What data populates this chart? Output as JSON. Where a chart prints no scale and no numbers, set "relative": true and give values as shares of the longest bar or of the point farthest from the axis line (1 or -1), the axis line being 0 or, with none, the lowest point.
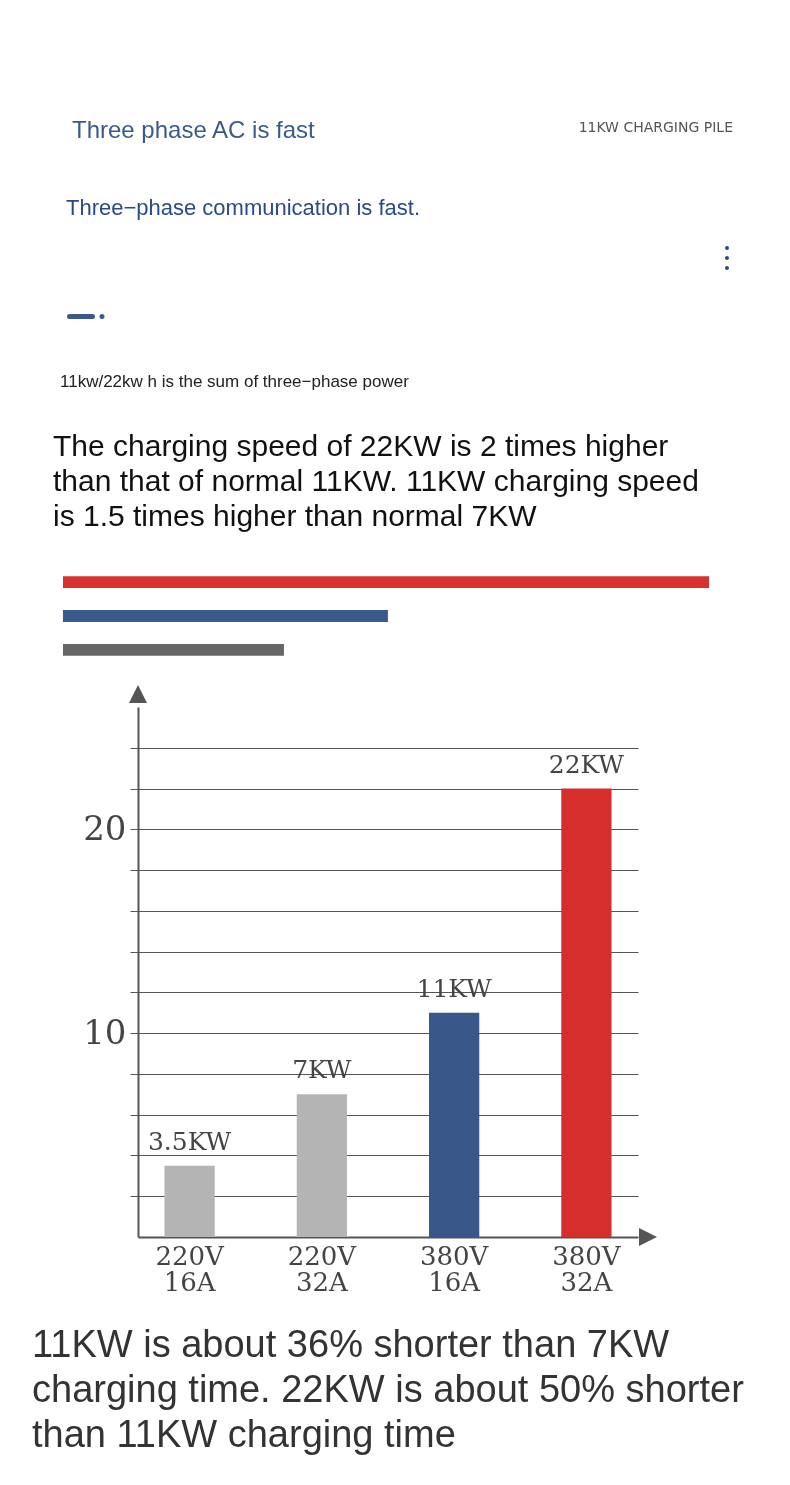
{
  "chart_data": [
    {
      "type": "bar",
      "title": "Three phase AC is fast",
      "subtitle": "Three−phase communication is fast.",
      "annotations": [
        "11KW CHARGING PILE",
        "11kw/22kw h is the sum of three−phase power",
        "The charging speed of 22KW is 2 times higher than that of normal 11KW. 11KW charging speed is 1.5 times higher than normal 7KW"
      ],
      "orientation": "horizontal",
      "relative": true,
      "categories": [
        null,
        null,
        null
      ],
      "values": [
        1,
        0.503,
        0.342
      ],
      "colors": [
        "#d7302f",
        "#3a5a8c",
        "#666666"
      ]
    },
    {
      "type": "bar",
      "categories": [
        "220V\n16A",
        "220V\n32A",
        "380V\n16A",
        "380V\n32A"
      ],
      "values": [
        3.5,
        7,
        11,
        22
      ],
      "colors": [
        "#b4b4b4",
        "#b4b4b4",
        "#3a5789",
        "#d62d2d"
      ],
      "value_labels": [
        "3.5KW",
        "7KW",
        "11KW",
        "22KW"
      ],
      "ylim": [
        0,
        26
      ],
      "yticks": [
        {
          "value": 2,
          "label": null
        },
        {
          "value": 4,
          "label": null
        },
        {
          "value": 6,
          "label": null
        },
        {
          "value": 8,
          "label": null
        },
        10,
        {
          "value": 12,
          "label": null
        },
        {
          "value": 14,
          "label": null
        },
        {
          "value": 16,
          "label": null
        },
        {
          "value": 18,
          "label": null
        },
        20,
        {
          "value": 22,
          "label": null
        },
        {
          "value": 24,
          "label": null
        }
      ],
      "grid": "y",
      "annotations": [
        "11KW is about 36% shorter than 7KW charging time. 22KW is about 50% shorter than 11KW charging time"
      ]
    }
  ]
}
